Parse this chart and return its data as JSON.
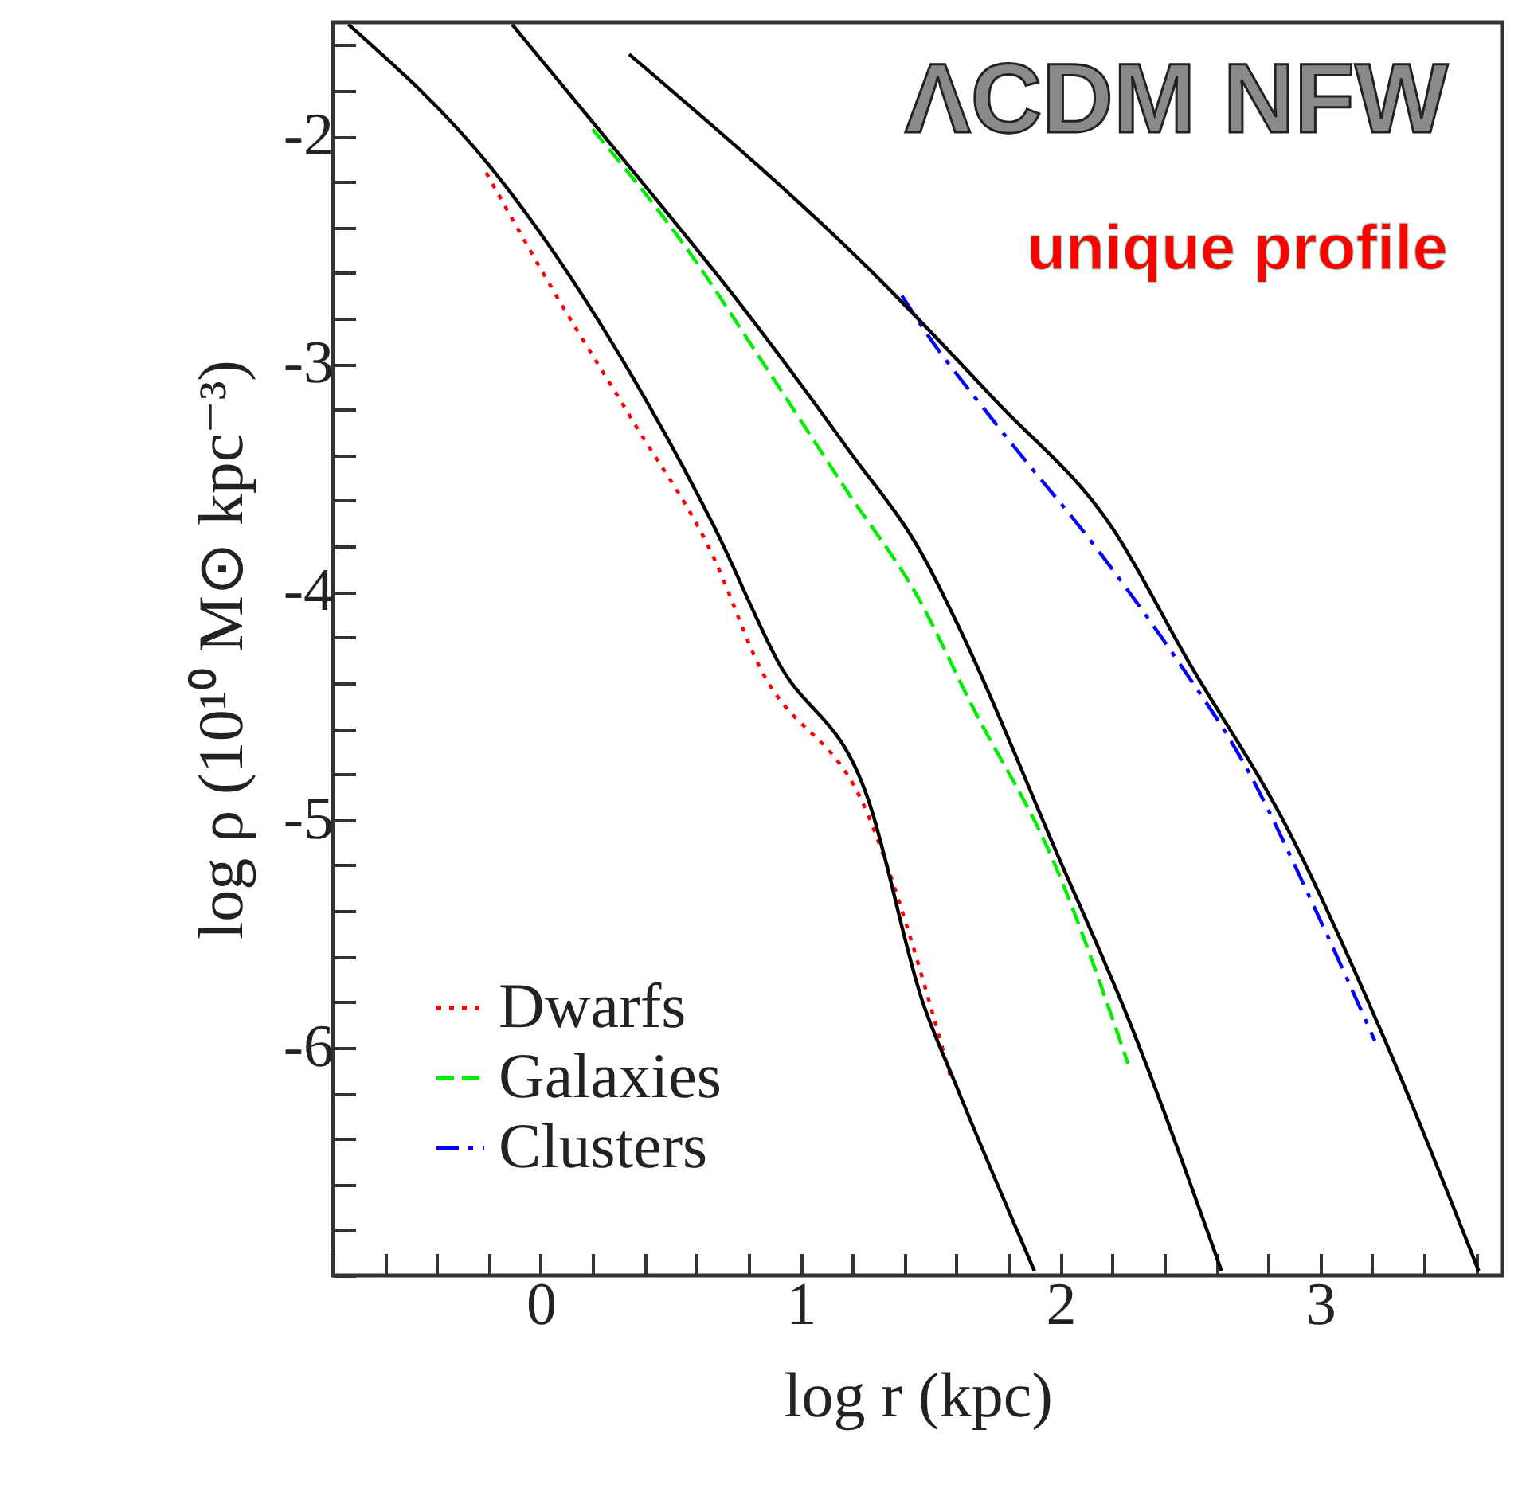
{
  "chart_data": {
    "type": "line",
    "xlabel": "log r (kpc)",
    "ylabel": "log ρ (10¹⁰ M⊙ kpc⁻³)",
    "annotations": [
      "ΛCDM NFW",
      "unique profile"
    ],
    "xlim": [
      -0.8,
      3.7
    ],
    "ylim": [
      -7,
      -1.5
    ],
    "xticks": [
      {
        "value": -0.8,
        "label": null
      },
      {
        "value": -0.6,
        "label": null
      },
      {
        "value": -0.4,
        "label": null
      },
      {
        "value": -0.2,
        "label": null
      },
      0,
      {
        "value": 0.2,
        "label": null
      },
      {
        "value": 0.4,
        "label": null
      },
      {
        "value": 0.6,
        "label": null
      },
      {
        "value": 0.8,
        "label": null
      },
      1,
      {
        "value": 1.2,
        "label": null
      },
      {
        "value": 1.4,
        "label": null
      },
      {
        "value": 1.6,
        "label": null
      },
      {
        "value": 1.8,
        "label": null
      },
      2,
      {
        "value": 2.2,
        "label": null
      },
      {
        "value": 2.4,
        "label": null
      },
      {
        "value": 2.6,
        "label": null
      },
      {
        "value": 2.8,
        "label": null
      },
      3,
      {
        "value": 3.2,
        "label": null
      },
      {
        "value": 3.4,
        "label": null
      },
      {
        "value": 3.6,
        "label": null
      }
    ],
    "yticks": [
      {
        "value": -7,
        "label": null
      },
      {
        "value": -6.8,
        "label": null
      },
      {
        "value": -6.6,
        "label": null
      },
      {
        "value": -6.4,
        "label": null
      },
      {
        "value": -6.2,
        "label": null
      },
      -6,
      {
        "value": -5.8,
        "label": null
      },
      {
        "value": -5.6,
        "label": null
      },
      {
        "value": -5.4,
        "label": null
      },
      {
        "value": -5.2,
        "label": null
      },
      -5,
      {
        "value": -4.8,
        "label": null
      },
      {
        "value": -4.6,
        "label": null
      },
      {
        "value": -4.4,
        "label": null
      },
      {
        "value": -4.2,
        "label": null
      },
      -4,
      {
        "value": -3.8,
        "label": null
      },
      {
        "value": -3.6,
        "label": null
      },
      {
        "value": -3.4,
        "label": null
      },
      {
        "value": -3.2,
        "label": null
      },
      -3,
      {
        "value": -2.8,
        "label": null
      },
      {
        "value": -2.6,
        "label": null
      },
      {
        "value": -2.4,
        "label": null
      },
      {
        "value": -2.2,
        "label": null
      },
      -2,
      {
        "value": -1.8,
        "label": null
      },
      {
        "value": -1.6,
        "label": null
      }
    ],
    "legend": "bottom left",
    "grid": false,
    "series": [
      {
        "name": "Dwarfs",
        "color": "#ff0000",
        "line_style": "dotted",
        "x": [
          -0.21,
          0.06,
          0.36,
          0.67,
          0.83,
          1.26,
          1.58
        ],
        "values": [
          -2.16,
          -2.7,
          -3.26,
          -3.86,
          -4.3,
          -4.98,
          -6.14
        ]
      },
      {
        "name": "Galaxies",
        "color": "#00ee00",
        "line_style": "dashed",
        "x": [
          0.2,
          0.56,
          0.87,
          1.18,
          1.45,
          1.66,
          1.98,
          2.26
        ],
        "values": [
          -1.97,
          -2.49,
          -3.02,
          -3.56,
          -4.02,
          -4.5,
          -5.2,
          -6.07
        ]
      },
      {
        "name": "Clusters",
        "color": "#0000ff",
        "line_style": "dashdot",
        "x": [
          1.39,
          1.47,
          1.75,
          2.16,
          2.45,
          2.7,
          3.0,
          3.21
        ],
        "values": [
          -2.7,
          -2.84,
          -3.26,
          -3.84,
          -4.3,
          -4.74,
          -5.44,
          -5.97
        ]
      },
      {
        "color": "#000000",
        "line_style": "solid",
        "x": [
          -0.74,
          -0.19,
          0.36,
          0.67,
          0.91,
          1.26,
          1.47,
          1.6,
          1.9
        ],
        "values": [
          -1.51,
          -2.14,
          -3.07,
          -3.72,
          -4.3,
          -4.91,
          -5.8,
          -6.17,
          -6.98
        ]
      },
      {
        "color": "#000000",
        "line_style": "solid",
        "x": [
          -0.11,
          0.36,
          0.77,
          1.18,
          1.47,
          1.62,
          1.98,
          2.26,
          2.62
        ],
        "values": [
          -1.51,
          -2.16,
          -2.74,
          -3.37,
          -3.84,
          -4.18,
          -5.13,
          -5.87,
          -6.98
        ]
      },
      {
        "color": "#000000",
        "line_style": "solid",
        "x": [
          0.34,
          1.34,
          1.75,
          2.2,
          2.49,
          2.87,
          3.25,
          3.61
        ],
        "values": [
          -1.64,
          -2.67,
          -3.16,
          -3.72,
          -4.3,
          -5.03,
          -5.97,
          -6.98
        ]
      }
    ]
  }
}
